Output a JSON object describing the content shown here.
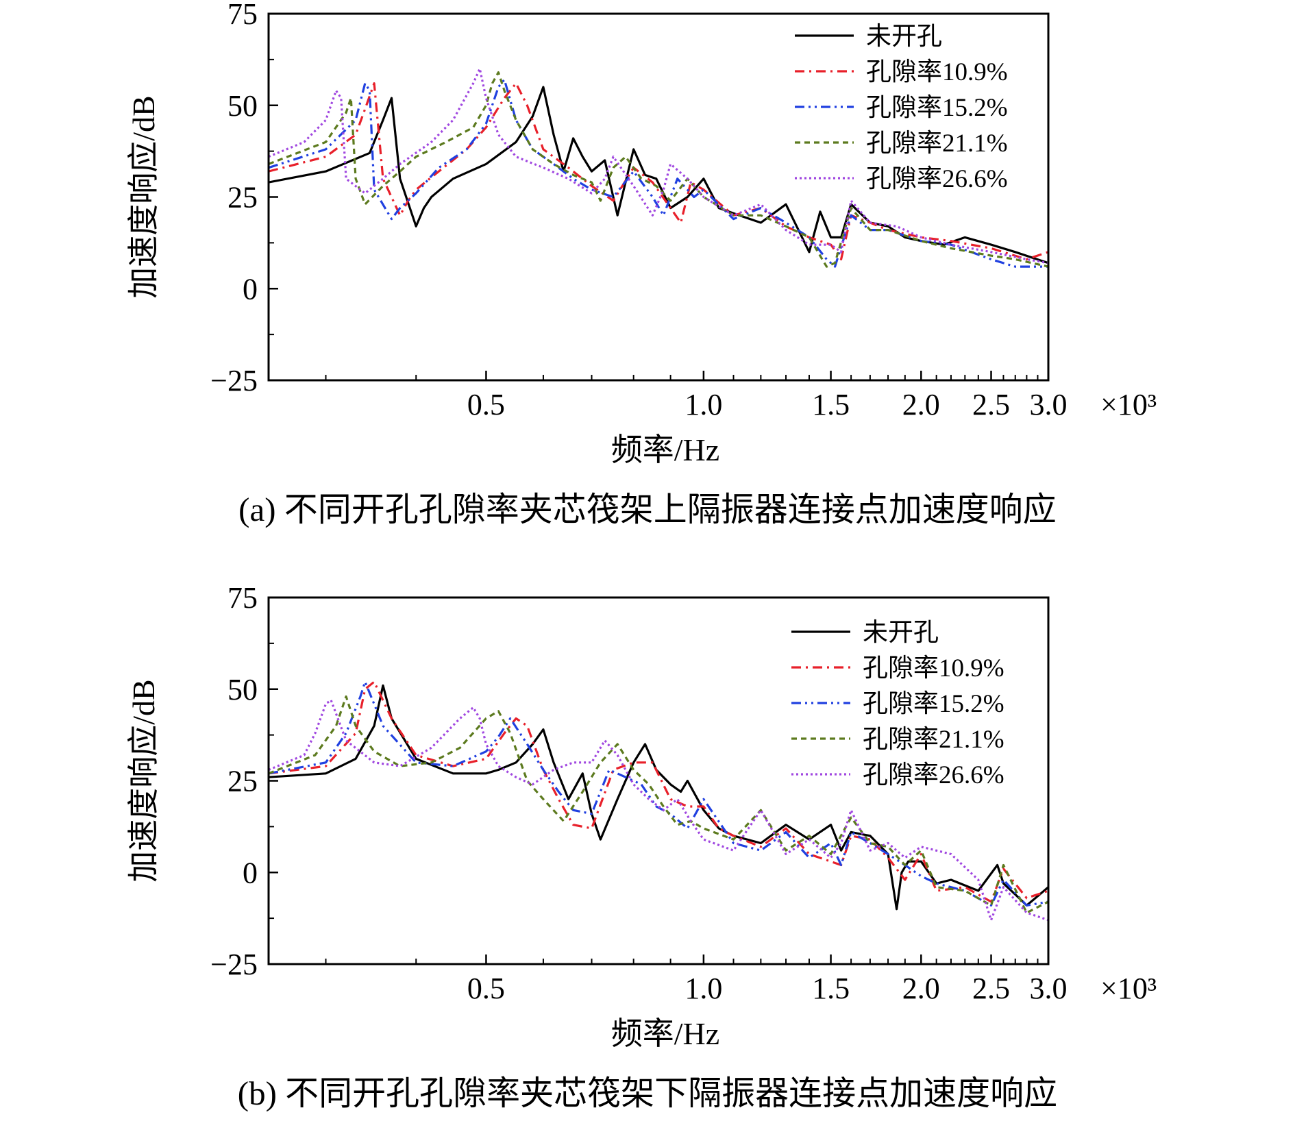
{
  "chart_data": [
    {
      "type": "line",
      "panel": "a",
      "caption": "(a) 不同开孔孔隙率夹芯筏架上隔振器连接点加速度响应",
      "xlabel": "频率/Hz",
      "ylabel": "加速度响应/dB",
      "xscale": "log",
      "x_multiplier": "×10³",
      "xlim": [
        0.25,
        3.0
      ],
      "ylim": [
        -25,
        75
      ],
      "yticks": [
        -25,
        0,
        25,
        50,
        75
      ],
      "ytick_labels": [
        "−25",
        "0",
        "25",
        "50",
        "75"
      ],
      "xticks": [
        0.5,
        1.0,
        1.5,
        2.0,
        2.5,
        3.0
      ],
      "xtick_labels": [
        "0.5",
        "1.0",
        "1.5",
        "2.0",
        "2.5",
        "3.0"
      ],
      "legend_position": "top-right",
      "series": [
        {
          "name": "未开孔",
          "color": "#000000",
          "dash": "",
          "x": [
            0.25,
            0.3,
            0.345,
            0.36,
            0.37,
            0.38,
            0.4,
            0.41,
            0.42,
            0.45,
            0.5,
            0.55,
            0.58,
            0.6,
            0.62,
            0.64,
            0.66,
            0.68,
            0.7,
            0.73,
            0.76,
            0.8,
            0.83,
            0.86,
            0.9,
            0.95,
            1.0,
            1.05,
            1.12,
            1.2,
            1.3,
            1.4,
            1.45,
            1.5,
            1.55,
            1.6,
            1.7,
            1.8,
            1.9,
            2.0,
            2.15,
            2.3,
            2.5,
            2.7,
            3.0
          ],
          "y": [
            29,
            32,
            37,
            46,
            52,
            30,
            17,
            22,
            25,
            30,
            34,
            40,
            47,
            55,
            42,
            32,
            41,
            36,
            32,
            35,
            20,
            38,
            31,
            30,
            22,
            25,
            30,
            22,
            20,
            18,
            23,
            10,
            21,
            14,
            14,
            23,
            18,
            17,
            14,
            13,
            12,
            14,
            12,
            10,
            7
          ]
        },
        {
          "name": "孔隙率10.9%",
          "color": "#e8202a",
          "dash": "14,7,3,7",
          "x": [
            0.25,
            0.3,
            0.33,
            0.34,
            0.35,
            0.36,
            0.38,
            0.39,
            0.4,
            0.43,
            0.47,
            0.5,
            0.53,
            0.55,
            0.57,
            0.6,
            0.65,
            0.7,
            0.75,
            0.8,
            0.85,
            0.9,
            0.93,
            0.96,
            1.0,
            1.1,
            1.2,
            1.3,
            1.4,
            1.5,
            1.55,
            1.6,
            1.7,
            1.8,
            2.0,
            2.2,
            2.5,
            2.8,
            3.0
          ],
          "y": [
            32,
            36,
            42,
            49,
            56,
            30,
            20,
            24,
            27,
            32,
            38,
            44,
            52,
            56,
            50,
            38,
            33,
            28,
            24,
            33,
            29,
            22,
            18,
            29,
            27,
            20,
            22,
            17,
            14,
            12,
            8,
            20,
            18,
            16,
            14,
            13,
            11,
            8,
            10
          ]
        },
        {
          "name": "孔隙率15.2%",
          "color": "#2040e0",
          "dash": "14,6,3,6,3,6",
          "x": [
            0.25,
            0.3,
            0.33,
            0.34,
            0.345,
            0.35,
            0.37,
            0.38,
            0.4,
            0.43,
            0.47,
            0.5,
            0.52,
            0.53,
            0.55,
            0.58,
            0.62,
            0.66,
            0.7,
            0.75,
            0.8,
            0.85,
            0.88,
            0.92,
            0.97,
            1.0,
            1.1,
            1.2,
            1.3,
            1.4,
            1.48,
            1.52,
            1.6,
            1.7,
            1.8,
            2.0,
            2.2,
            2.5,
            2.7,
            3.0
          ],
          "y": [
            33,
            38,
            46,
            56,
            54,
            27,
            19,
            22,
            26,
            33,
            38,
            45,
            55,
            57,
            46,
            38,
            34,
            30,
            27,
            25,
            32,
            25,
            20,
            30,
            25,
            27,
            19,
            22,
            18,
            14,
            8,
            6,
            20,
            16,
            16,
            13,
            12,
            8,
            6,
            6
          ]
        },
        {
          "name": "孔隙率21.1%",
          "color": "#5c7a1e",
          "dash": "8,6",
          "x": [
            0.25,
            0.3,
            0.32,
            0.325,
            0.33,
            0.34,
            0.36,
            0.38,
            0.4,
            0.44,
            0.48,
            0.5,
            0.51,
            0.52,
            0.53,
            0.55,
            0.58,
            0.62,
            0.66,
            0.7,
            0.72,
            0.75,
            0.78,
            0.82,
            0.86,
            0.9,
            0.95,
            1.0,
            1.1,
            1.2,
            1.3,
            1.4,
            1.48,
            1.52,
            1.6,
            1.7,
            1.8,
            2.0,
            2.2,
            2.5,
            2.7,
            3.0
          ],
          "y": [
            34,
            40,
            48,
            52,
            30,
            23,
            28,
            32,
            36,
            40,
            44,
            50,
            56,
            59,
            54,
            46,
            38,
            34,
            31,
            29,
            24,
            33,
            36,
            30,
            28,
            24,
            30,
            25,
            20,
            20,
            17,
            14,
            6,
            7,
            22,
            16,
            16,
            13,
            11,
            9,
            8,
            6
          ]
        },
        {
          "name": "孔隙率26.6%",
          "color": "#a047e0",
          "dash": "3,4",
          "x": [
            0.25,
            0.28,
            0.3,
            0.31,
            0.315,
            0.32,
            0.34,
            0.36,
            0.38,
            0.42,
            0.45,
            0.48,
            0.49,
            0.5,
            0.52,
            0.55,
            0.6,
            0.65,
            0.7,
            0.73,
            0.75,
            0.8,
            0.85,
            0.88,
            0.9,
            0.95,
            1.0,
            1.1,
            1.2,
            1.3,
            1.4,
            1.5,
            1.55,
            1.6,
            1.7,
            1.85,
            2.0,
            2.2,
            2.5,
            2.8,
            3.0
          ],
          "y": [
            36,
            40,
            46,
            54,
            52,
            30,
            26,
            30,
            34,
            40,
            46,
            56,
            60,
            52,
            42,
            36,
            33,
            30,
            26,
            30,
            36,
            28,
            20,
            27,
            34,
            30,
            25,
            20,
            23,
            16,
            12,
            12,
            10,
            24,
            18,
            17,
            14,
            12,
            10,
            8,
            7
          ]
        }
      ]
    },
    {
      "type": "line",
      "panel": "b",
      "caption": "(b) 不同开孔孔隙率夹芯筏架下隔振器连接点加速度响应",
      "xlabel": "频率/Hz",
      "ylabel": "加速度响应/dB",
      "xscale": "log",
      "x_multiplier": "×10³",
      "xlim": [
        0.25,
        3.0
      ],
      "ylim": [
        -25,
        75
      ],
      "yticks": [
        -25,
        0,
        25,
        50,
        75
      ],
      "ytick_labels": [
        "−25",
        "0",
        "25",
        "50",
        "75"
      ],
      "xticks": [
        0.5,
        1.0,
        1.5,
        2.0,
        2.5,
        3.0
      ],
      "xtick_labels": [
        "0.5",
        "1.0",
        "1.5",
        "2.0",
        "2.5",
        "3.0"
      ],
      "legend_position": "top-right",
      "series": [
        {
          "name": "未开孔",
          "color": "#000000",
          "dash": "",
          "x": [
            0.25,
            0.3,
            0.33,
            0.35,
            0.36,
            0.37,
            0.4,
            0.45,
            0.5,
            0.52,
            0.55,
            0.58,
            0.6,
            0.62,
            0.65,
            0.68,
            0.7,
            0.72,
            0.76,
            0.8,
            0.83,
            0.86,
            0.9,
            0.93,
            0.95,
            1.0,
            1.05,
            1.1,
            1.2,
            1.3,
            1.4,
            1.5,
            1.55,
            1.6,
            1.7,
            1.8,
            1.85,
            1.88,
            1.92,
            2.0,
            2.1,
            2.2,
            2.4,
            2.55,
            2.6,
            2.7,
            2.8,
            3.0
          ],
          "y": [
            26,
            27,
            31,
            40,
            51,
            42,
            31,
            27,
            27,
            28,
            30,
            35,
            39,
            30,
            20,
            27,
            16,
            9,
            20,
            30,
            35,
            28,
            24,
            22,
            25,
            17,
            12,
            10,
            8,
            13,
            9,
            13,
            6,
            11,
            10,
            5,
            -10,
            0,
            3,
            3,
            -3,
            -2,
            -5,
            2,
            -3,
            -6,
            -9,
            -4
          ]
        },
        {
          "name": "孔隙率10.9%",
          "color": "#e8202a",
          "dash": "14,7,3,7",
          "x": [
            0.25,
            0.3,
            0.33,
            0.34,
            0.35,
            0.37,
            0.4,
            0.45,
            0.5,
            0.53,
            0.55,
            0.57,
            0.6,
            0.63,
            0.66,
            0.7,
            0.75,
            0.8,
            0.85,
            0.9,
            0.95,
            1.0,
            1.05,
            1.1,
            1.2,
            1.3,
            1.4,
            1.55,
            1.6,
            1.7,
            1.8,
            1.9,
            2.0,
            2.1,
            2.3,
            2.5,
            2.6,
            2.8,
            3.0
          ],
          "y": [
            27,
            29,
            38,
            50,
            52,
            42,
            32,
            29,
            31,
            38,
            42,
            40,
            28,
            20,
            13,
            12,
            28,
            30,
            30,
            20,
            18,
            18,
            12,
            10,
            7,
            12,
            5,
            2,
            10,
            9,
            4,
            -2,
            5,
            -5,
            -4,
            -8,
            1,
            -7,
            -5
          ]
        },
        {
          "name": "孔隙率15.2%",
          "color": "#2040e0",
          "dash": "14,6,3,6,3,6",
          "x": [
            0.25,
            0.3,
            0.32,
            0.335,
            0.34,
            0.36,
            0.4,
            0.45,
            0.5,
            0.52,
            0.54,
            0.57,
            0.6,
            0.63,
            0.66,
            0.7,
            0.74,
            0.78,
            0.82,
            0.86,
            0.9,
            0.95,
            1.0,
            1.1,
            1.2,
            1.3,
            1.4,
            1.5,
            1.55,
            1.6,
            1.7,
            1.8,
            1.9,
            2.0,
            2.1,
            2.3,
            2.5,
            2.6,
            2.8,
            3.0
          ],
          "y": [
            27,
            30,
            38,
            48,
            52,
            40,
            30,
            29,
            33,
            37,
            42,
            35,
            28,
            22,
            17,
            16,
            28,
            26,
            24,
            18,
            16,
            12,
            20,
            8,
            6,
            11,
            4,
            8,
            2,
            11,
            8,
            5,
            2,
            -1,
            -3,
            -5,
            -9,
            -2,
            -9,
            -8
          ]
        },
        {
          "name": "孔隙率21.1%",
          "color": "#5c7a1e",
          "dash": "8,6",
          "x": [
            0.25,
            0.29,
            0.31,
            0.32,
            0.33,
            0.35,
            0.38,
            0.42,
            0.46,
            0.5,
            0.52,
            0.54,
            0.57,
            0.6,
            0.64,
            0.68,
            0.72,
            0.76,
            0.8,
            0.84,
            0.88,
            0.92,
            0.96,
            1.0,
            1.1,
            1.2,
            1.3,
            1.4,
            1.5,
            1.6,
            1.7,
            1.8,
            1.9,
            2.0,
            2.1,
            2.3,
            2.5,
            2.6,
            2.8,
            3.0
          ],
          "y": [
            27,
            32,
            40,
            48,
            40,
            33,
            29,
            30,
            34,
            42,
            44,
            38,
            25,
            20,
            14,
            22,
            30,
            35,
            28,
            24,
            18,
            13,
            14,
            12,
            9,
            17,
            6,
            10,
            5,
            15,
            8,
            7,
            2,
            6,
            -4,
            -5,
            -9,
            2,
            -11,
            -8
          ]
        },
        {
          "name": "孔隙率26.6%",
          "color": "#a047e0",
          "dash": "3,4",
          "x": [
            0.25,
            0.28,
            0.29,
            0.3,
            0.305,
            0.32,
            0.35,
            0.38,
            0.42,
            0.46,
            0.48,
            0.49,
            0.5,
            0.52,
            0.55,
            0.58,
            0.62,
            0.66,
            0.7,
            0.73,
            0.76,
            0.8,
            0.84,
            0.88,
            0.92,
            0.96,
            1.0,
            1.1,
            1.2,
            1.3,
            1.4,
            1.5,
            1.55,
            1.6,
            1.7,
            1.8,
            1.9,
            2.0,
            2.2,
            2.4,
            2.5,
            2.6,
            2.8,
            3.0
          ],
          "y": [
            28,
            32,
            38,
            46,
            47,
            36,
            30,
            29,
            34,
            42,
            45,
            42,
            35,
            29,
            26,
            24,
            28,
            30,
            30,
            36,
            32,
            24,
            20,
            17,
            20,
            14,
            9,
            6,
            17,
            5,
            9,
            4,
            8,
            17,
            6,
            8,
            4,
            7,
            5,
            -2,
            -13,
            -4,
            -11,
            -13
          ]
        }
      ]
    }
  ]
}
